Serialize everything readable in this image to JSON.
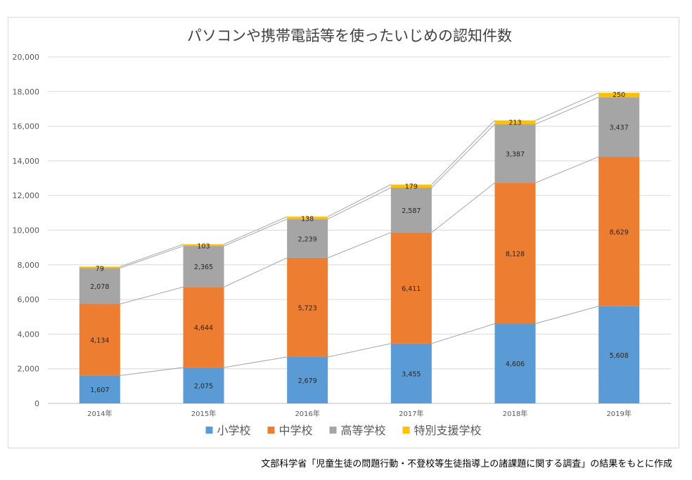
{
  "chart_data": {
    "type": "bar",
    "stacked": true,
    "title": "パソコンや携帯電話等を使ったいじめの認知件数",
    "categories": [
      "2014年",
      "2015年",
      "2016年",
      "2017年",
      "2018年",
      "2019年"
    ],
    "series": [
      {
        "name": "小学校",
        "color": "#5b9bd5",
        "values": [
          1607,
          2075,
          2679,
          3455,
          4606,
          5608
        ]
      },
      {
        "name": "中学校",
        "color": "#ed7d31",
        "values": [
          4134,
          4644,
          5723,
          6411,
          8128,
          8629
        ]
      },
      {
        "name": "高等学校",
        "color": "#a5a5a5",
        "values": [
          2078,
          2365,
          2239,
          2587,
          3387,
          3437
        ]
      },
      {
        "name": "特別支援学校",
        "color": "#ffc000",
        "values": [
          79,
          103,
          138,
          179,
          213,
          250
        ]
      }
    ],
    "ylim": [
      0,
      20000
    ],
    "yticks": [
      0,
      2000,
      4000,
      6000,
      8000,
      10000,
      12000,
      14000,
      16000,
      18000,
      20000
    ],
    "ytick_labels": [
      "0",
      "2,000",
      "4,000",
      "6,000",
      "8,000",
      "10,000",
      "12,000",
      "14,000",
      "16,000",
      "18,000",
      "20,000"
    ],
    "series_lines": true,
    "grid": true,
    "legend_position": "bottom"
  },
  "source_note": "文部科学省「児童生徒の問題行動・不登校等生徒指導上の諸課題に関する調査」の結果をもとに作成"
}
